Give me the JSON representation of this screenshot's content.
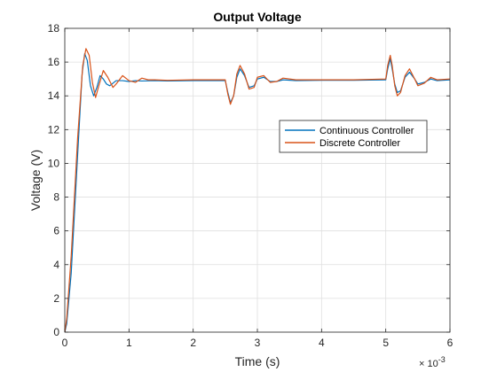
{
  "chart_data": {
    "type": "line",
    "title": "Output Voltage",
    "xlabel": "Time (s)",
    "ylabel": "Voltage (V)",
    "xlim": [
      0,
      0.006
    ],
    "ylim": [
      0,
      18
    ],
    "x_scale_exponent": {
      "base": "× 10",
      "power": "-3"
    },
    "xticks": [
      0,
      0.001,
      0.002,
      0.003,
      0.004,
      0.005,
      0.006
    ],
    "xtick_labels": [
      "0",
      "1",
      "2",
      "3",
      "4",
      "5",
      "6"
    ],
    "yticks": [
      0,
      2,
      4,
      6,
      8,
      10,
      12,
      14,
      16,
      18
    ],
    "ytick_labels": [
      "0",
      "2",
      "4",
      "6",
      "8",
      "10",
      "12",
      "14",
      "16",
      "18"
    ],
    "grid": true,
    "legend_position": "center-right",
    "series": [
      {
        "name": "Continuous Controller",
        "color": "#0072BD",
        "x": [
          0,
          3e-05,
          0.0001,
          0.0002,
          0.00027,
          0.00031,
          0.00035,
          0.0004,
          0.00045,
          0.0005,
          0.00055,
          0.0006,
          0.00065,
          0.0007,
          0.0008,
          0.0009,
          0.001,
          0.0011,
          0.0012,
          0.0014,
          0.0016,
          0.002,
          0.0025,
          0.00254,
          0.00258,
          0.00263,
          0.00268,
          0.00273,
          0.0028,
          0.00287,
          0.00295,
          0.003,
          0.0031,
          0.0032,
          0.0033,
          0.0034,
          0.0036,
          0.004,
          0.0045,
          0.005,
          0.00503,
          0.00507,
          0.0051,
          0.00514,
          0.00518,
          0.00523,
          0.0053,
          0.00537,
          0.00545,
          0.0055,
          0.0056,
          0.0057,
          0.0058,
          0.006
        ],
        "y": [
          0,
          0.5,
          3.5,
          10.5,
          15.3,
          16.5,
          16.1,
          14.6,
          14.0,
          14.5,
          15.2,
          15.0,
          14.7,
          14.6,
          14.9,
          14.9,
          14.85,
          14.9,
          14.88,
          14.9,
          14.88,
          14.9,
          14.9,
          14.2,
          13.6,
          14.0,
          15.1,
          15.6,
          15.2,
          14.5,
          14.6,
          15.0,
          15.1,
          14.85,
          14.85,
          14.95,
          14.9,
          14.92,
          14.92,
          14.95,
          15.6,
          16.2,
          15.6,
          14.7,
          14.2,
          14.3,
          15.1,
          15.4,
          15.0,
          14.7,
          14.8,
          15.0,
          14.9,
          14.95
        ]
      },
      {
        "name": "Discrete Controller",
        "color": "#D95319",
        "x": [
          0,
          3e-05,
          0.0001,
          0.0002,
          0.00028,
          0.00033,
          0.00038,
          0.00043,
          0.00048,
          0.00053,
          0.0006,
          0.00067,
          0.00075,
          0.0008,
          0.0009,
          0.001,
          0.0011,
          0.0012,
          0.0013,
          0.0014,
          0.0016,
          0.002,
          0.0025,
          0.00254,
          0.00258,
          0.00263,
          0.00268,
          0.00273,
          0.0028,
          0.00287,
          0.00295,
          0.003,
          0.0031,
          0.0032,
          0.0033,
          0.0034,
          0.0036,
          0.004,
          0.0045,
          0.005,
          0.00503,
          0.00507,
          0.0051,
          0.00514,
          0.00518,
          0.00523,
          0.0053,
          0.00537,
          0.00545,
          0.0055,
          0.0056,
          0.0057,
          0.0058,
          0.006
        ],
        "y": [
          0,
          0.8,
          4.5,
          11.5,
          15.8,
          16.8,
          16.4,
          14.8,
          13.9,
          14.6,
          15.5,
          15.1,
          14.5,
          14.7,
          15.2,
          14.9,
          14.8,
          15.05,
          14.95,
          14.95,
          14.92,
          14.95,
          14.95,
          14.1,
          13.5,
          14.0,
          15.3,
          15.8,
          15.3,
          14.4,
          14.5,
          15.1,
          15.2,
          14.8,
          14.85,
          15.05,
          14.95,
          14.95,
          14.95,
          15.0,
          15.8,
          16.4,
          15.8,
          14.6,
          14.0,
          14.2,
          15.2,
          15.6,
          15.0,
          14.6,
          14.75,
          15.1,
          14.95,
          15.0
        ]
      }
    ]
  }
}
